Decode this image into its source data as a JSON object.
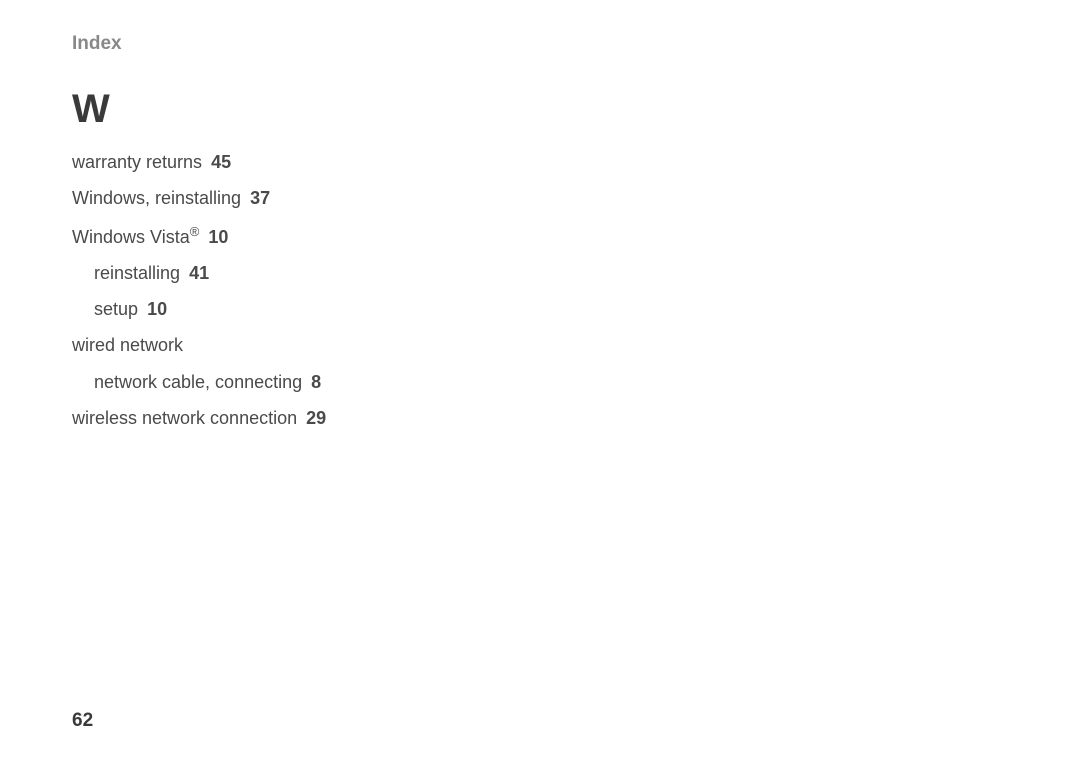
{
  "header": {
    "title": "Index"
  },
  "section": {
    "letter": "W"
  },
  "entries": {
    "e0": {
      "label": "warranty returns",
      "page": "45"
    },
    "e1": {
      "label": "Windows, reinstalling",
      "page": "37"
    },
    "e2": {
      "label": "Windows Vista",
      "registered": "®",
      "page": "10"
    },
    "e2s0": {
      "label": "reinstalling",
      "page": "41"
    },
    "e2s1": {
      "label": "setup",
      "page": "10"
    },
    "e3": {
      "label": "wired network",
      "page": ""
    },
    "e3s0": {
      "label": "network cable, connecting",
      "page": "8"
    },
    "e4": {
      "label": "wireless network connection",
      "page": "29"
    }
  },
  "pageNumber": "62",
  "colors": {
    "background": "#ffffff",
    "headerText": "#888888",
    "bodyText": "#4a4a4a",
    "strongText": "#3a3a3a"
  },
  "typography": {
    "headerFontSize": 19,
    "letterFontSize": 40,
    "entryFontSize": 18,
    "pageNumFontSize": 19
  }
}
